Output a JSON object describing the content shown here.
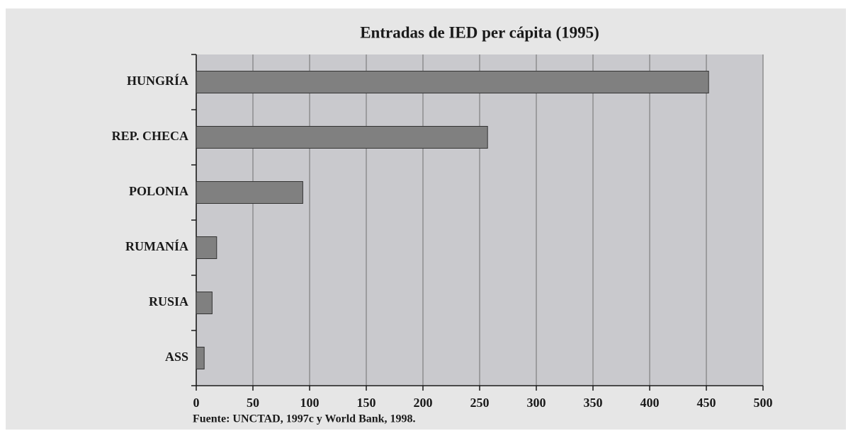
{
  "chart_data": {
    "type": "bar",
    "orientation": "horizontal",
    "title": "Entradas de IED per cápita (1995)",
    "categories": [
      "HUNGRÍA",
      "REP. CHECA",
      "POLONIA",
      "RUMANÍA",
      "RUSIA",
      "ASS"
    ],
    "values": [
      452,
      257,
      94,
      18,
      14,
      7
    ],
    "color": "#808080",
    "xlim": [
      0,
      500
    ],
    "xticks": [
      0,
      50,
      100,
      150,
      200,
      250,
      300,
      350,
      400,
      450,
      500
    ],
    "grid": true,
    "source": "Fuente: UNCTAD, 1997c y World Bank, 1998."
  }
}
